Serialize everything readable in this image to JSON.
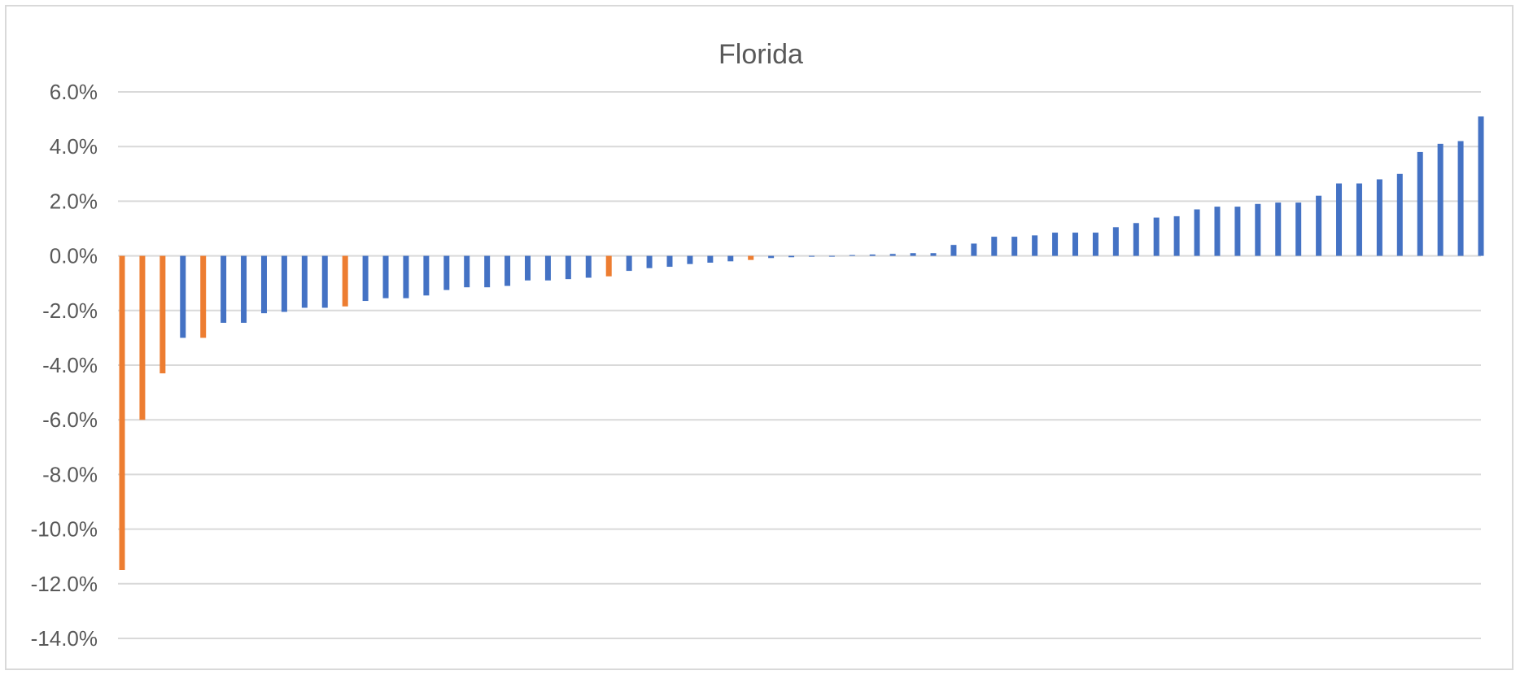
{
  "chart_data": {
    "type": "bar",
    "title": "Florida",
    "xlabel": "",
    "ylabel": "",
    "ylim": [
      -0.14,
      0.06
    ],
    "yticks": [
      "6.0%",
      "4.0%",
      "2.0%",
      "0.0%",
      "-2.0%",
      "-4.0%",
      "-6.0%",
      "-8.0%",
      "-10.0%",
      "-12.0%",
      "-14.0%"
    ],
    "ytick_values": [
      0.06,
      0.04,
      0.02,
      0.0,
      -0.02,
      -0.04,
      -0.06,
      -0.08,
      -0.1,
      -0.12,
      -0.14
    ],
    "grid": true,
    "legend": "none",
    "colors": {
      "default": "#4472c4",
      "highlight": "#ed7d31",
      "grid": "#d9d9d9",
      "text": "#595959"
    },
    "values": [
      -0.115,
      -0.06,
      -0.043,
      -0.03,
      -0.03,
      -0.0245,
      -0.0245,
      -0.021,
      -0.0205,
      -0.019,
      -0.019,
      -0.0185,
      -0.0165,
      -0.0155,
      -0.0155,
      -0.0145,
      -0.0125,
      -0.0115,
      -0.0115,
      -0.011,
      -0.009,
      -0.009,
      -0.0085,
      -0.008,
      -0.0075,
      -0.0055,
      -0.0045,
      -0.004,
      -0.003,
      -0.0025,
      -0.002,
      -0.0015,
      -0.0008,
      -0.0005,
      -0.0003,
      -0.0002,
      0.0003,
      0.0005,
      0.0007,
      0.001,
      0.001,
      0.004,
      0.0045,
      0.007,
      0.007,
      0.0075,
      0.0085,
      0.0085,
      0.0085,
      0.0105,
      0.012,
      0.014,
      0.0145,
      0.017,
      0.018,
      0.018,
      0.019,
      0.0195,
      0.0195,
      0.022,
      0.0265,
      0.0265,
      0.028,
      0.03,
      0.038,
      0.041,
      0.042,
      0.051
    ],
    "highlight": [
      true,
      true,
      true,
      false,
      true,
      false,
      false,
      false,
      false,
      false,
      false,
      true,
      false,
      false,
      false,
      false,
      false,
      false,
      false,
      false,
      false,
      false,
      false,
      false,
      true,
      false,
      false,
      false,
      false,
      false,
      false,
      true,
      false,
      false,
      false,
      false,
      false,
      false,
      false,
      false,
      false,
      false,
      false,
      false,
      false,
      false,
      false,
      false,
      false,
      false,
      false,
      false,
      false,
      false,
      false,
      false,
      false,
      false,
      false,
      false,
      false,
      false,
      false,
      false,
      false,
      false,
      false,
      false
    ]
  }
}
